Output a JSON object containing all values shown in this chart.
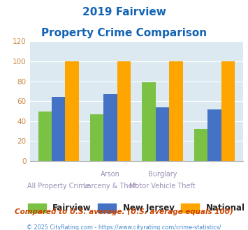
{
  "title_line1": "2019 Fairview",
  "title_line2": "Property Crime Comparison",
  "fairview_vals": [
    50,
    47,
    79,
    32
  ],
  "nj_vals": [
    64,
    67,
    54,
    52
  ],
  "national_vals": [
    100,
    100,
    100,
    100
  ],
  "x_labels_top": [
    "",
    "Arson",
    "Burglary",
    ""
  ],
  "x_labels_bottom": [
    "All Property Crime",
    "Larceny & Theft",
    "Motor Vehicle Theft",
    ""
  ],
  "color_fairview": "#7bc143",
  "color_nj": "#4472c4",
  "color_national": "#ffa500",
  "ylim": [
    0,
    120
  ],
  "yticks": [
    0,
    20,
    40,
    60,
    80,
    100,
    120
  ],
  "bg_color": "#dce9f0",
  "title_color": "#1464b4",
  "label_color": "#9b8fb6",
  "footnote1": "Compared to U.S. average. (U.S. average equals 100)",
  "footnote2": "© 2025 CityRating.com - https://www.cityrating.com/crime-statistics/",
  "legend_labels": [
    "Fairview",
    "New Jersey",
    "National"
  ]
}
